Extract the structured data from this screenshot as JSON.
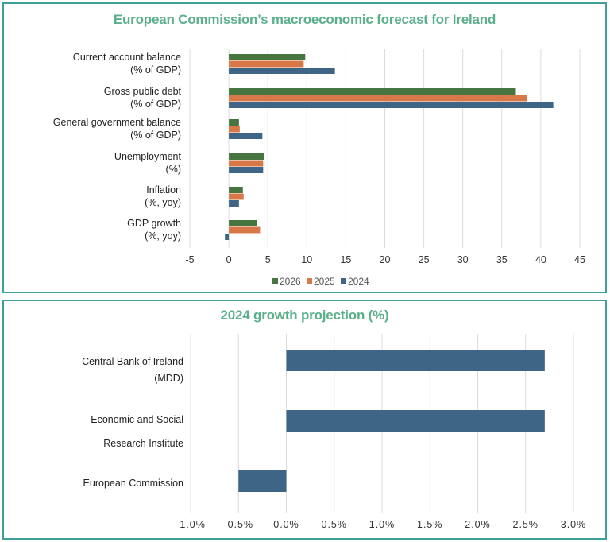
{
  "chart_data": [
    {
      "type": "bar",
      "orientation": "horizontal",
      "title": "European Commission’s macroeconomic forecast for Ireland",
      "categories": [
        [
          "Current account balance",
          "(% of GDP)"
        ],
        [
          "Gross public debt",
          "(% of GDP)"
        ],
        [
          "General government balance",
          "(% of GDP)"
        ],
        [
          "Unemployment",
          "(%)"
        ],
        [
          "Inflation",
          "(%, yoy)"
        ],
        [
          "GDP growth",
          "(%, yoy)"
        ]
      ],
      "series": [
        {
          "name": "2026",
          "color": "#467540",
          "values": [
            9.8,
            36.8,
            1.3,
            4.5,
            1.8,
            3.6
          ]
        },
        {
          "name": "2025",
          "color": "#d87848",
          "values": [
            9.6,
            38.2,
            1.4,
            4.4,
            1.9,
            4.0
          ]
        },
        {
          "name": "2024",
          "color": "#3e6585",
          "values": [
            13.6,
            41.6,
            4.3,
            4.4,
            1.3,
            -0.5
          ]
        }
      ],
      "xlim": [
        -5,
        45
      ],
      "xticks": [
        "-5",
        "0",
        "5",
        "10",
        "15",
        "20",
        "25",
        "30",
        "35",
        "40",
        "45"
      ],
      "xtick_values": [
        -5,
        0,
        5,
        10,
        15,
        20,
        25,
        30,
        35,
        40,
        45
      ],
      "grid": true,
      "legend": [
        "2026",
        "2025",
        "2024"
      ],
      "legend_position": "bottom"
    },
    {
      "type": "bar",
      "orientation": "horizontal",
      "title": "2024 growth projection (%)",
      "categories": [
        [
          "Central Bank of Ireland",
          "(MDD)"
        ],
        [
          "Economic and Social",
          "Research Institute"
        ],
        [
          "European Commission"
        ]
      ],
      "series": [
        {
          "name": "2024",
          "color": "#3e6585",
          "values": [
            2.7,
            2.7,
            -0.5
          ]
        }
      ],
      "xlim": [
        -1.0,
        3.0
      ],
      "xticks": [
        "-1.0%",
        "-0.5%",
        "0.0%",
        "0.5%",
        "1.0%",
        "1.5%",
        "2.0%",
        "2.5%",
        "3.0%"
      ],
      "xtick_values": [
        -1.0,
        -0.5,
        0.0,
        0.5,
        1.0,
        1.5,
        2.0,
        2.5,
        3.0
      ],
      "grid": true
    }
  ]
}
